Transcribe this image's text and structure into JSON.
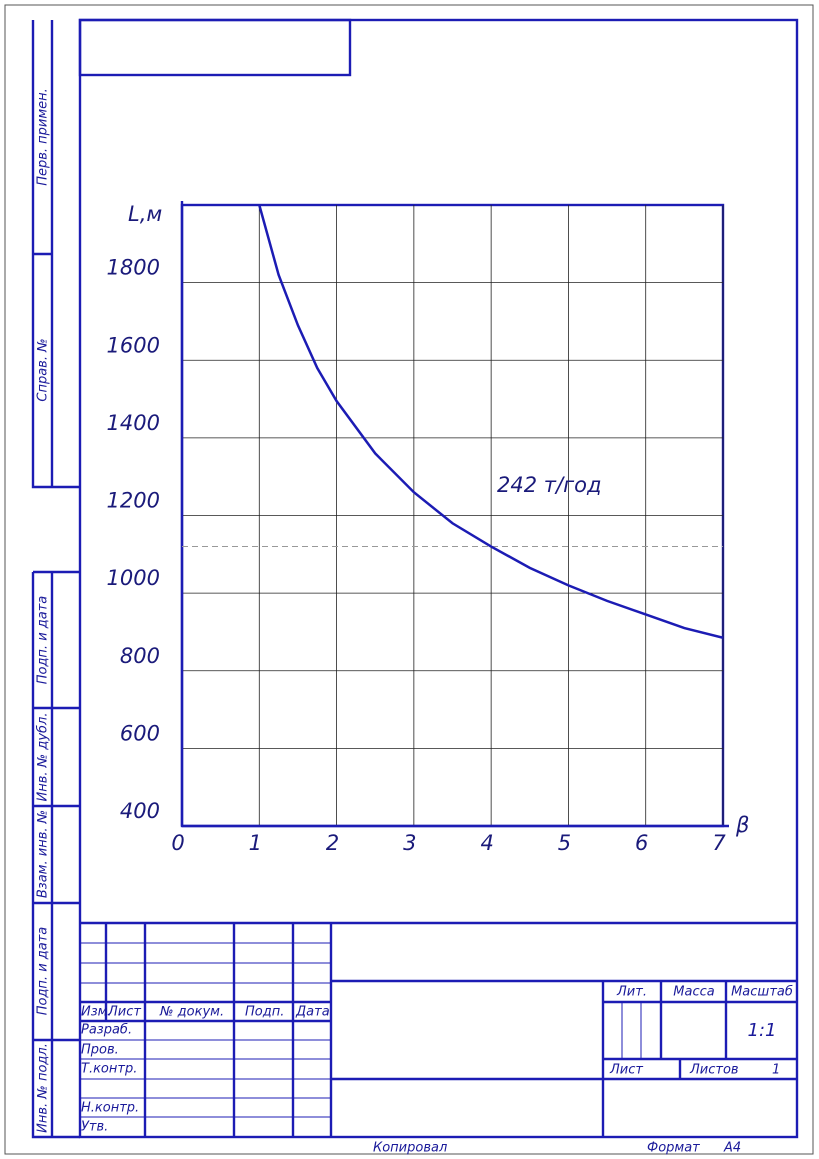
{
  "chart_data": {
    "type": "line",
    "ylabel": "L,м",
    "xlabel": "β",
    "annotation": "242 т/год",
    "x": [
      1,
      1.25,
      1.5,
      1.75,
      2,
      2.5,
      3,
      3.5,
      4,
      4.5,
      5,
      5.5,
      6,
      6.5,
      7
    ],
    "series": [
      {
        "color": "#1c1cb4",
        "values": [
          2000,
          1820,
          1690,
          1580,
          1495,
          1360,
          1260,
          1180,
          1120,
          1065,
          1020,
          980,
          945,
          910,
          885
        ]
      }
    ],
    "reference_lines": [
      1120
    ],
    "xlim": [
      0,
      7
    ],
    "xticks": [
      0,
      1,
      2,
      3,
      4,
      5,
      6,
      7
    ],
    "ylim": [
      400,
      2000
    ],
    "yticks": [
      400,
      600,
      800,
      1000,
      1200,
      1400,
      1600,
      1800
    ],
    "grid": true
  },
  "left_stamps": [
    "Перв. примен.",
    "Справ. №",
    "Подп. и дата",
    "Инв. № дубл.",
    "Взам. инв. №",
    "Подп. и дата",
    "Инв. № подл."
  ],
  "title_block": {
    "header": [
      "Изм.",
      "Лист",
      "№ докум.",
      "Подп.",
      "Дата"
    ],
    "rows": [
      "Разраб.",
      "Пров.",
      "Т.контр.",
      "Н.контр.",
      "Утв."
    ],
    "lit": "Лит.",
    "mass": "Масса",
    "scale": "Масштаб",
    "scale_value": "1:1",
    "sheet": "Лист",
    "sheets": "Листов",
    "sheets_value": "1"
  },
  "footer": {
    "copied": "Копировал",
    "format": "Формат",
    "format_value": "А4"
  }
}
